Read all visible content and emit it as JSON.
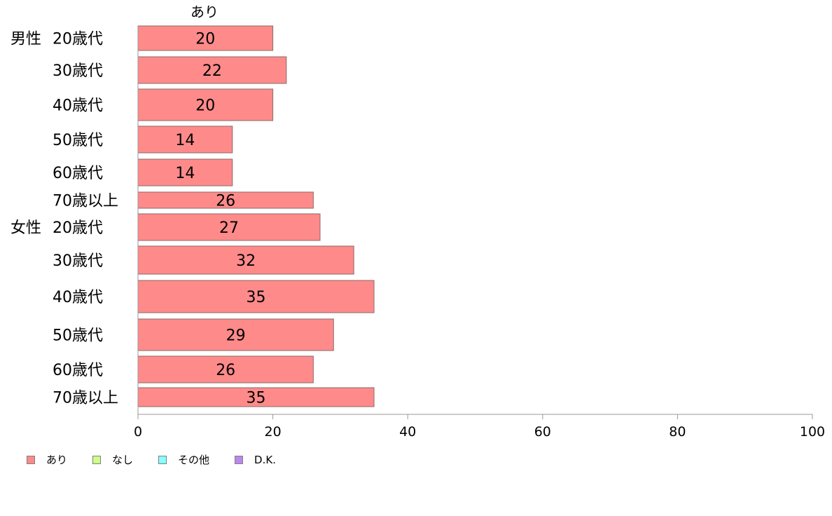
{
  "chart_data": {
    "type": "bar",
    "orientation": "horizontal",
    "column_header": "あり",
    "groups": [
      {
        "label": "男性",
        "categories": [
          "20歳代",
          "30歳代",
          "40歳代",
          "50歳代",
          "60歳代",
          "70歳以上"
        ]
      },
      {
        "label": "女性",
        "categories": [
          "20歳代",
          "30歳代",
          "40歳代",
          "50歳代",
          "60歳代",
          "70歳以上"
        ]
      }
    ],
    "series": [
      {
        "name": "あり",
        "color": "#ff8a8a",
        "values": [
          20,
          22,
          20,
          14,
          14,
          26,
          27,
          32,
          35,
          29,
          26,
          35
        ]
      }
    ],
    "xlim": [
      0,
      100
    ],
    "xticks": [
      "0",
      "20",
      "40",
      "60",
      "80",
      "100"
    ],
    "grid": false,
    "legend_position": "bottom-left",
    "legend": [
      {
        "label": "あり",
        "color": "#ff8a8a"
      },
      {
        "label": "なし",
        "color": "#ccff88"
      },
      {
        "label": "その他",
        "color": "#88ffff"
      },
      {
        "label": "D.K.",
        "color": "#bb88ee"
      }
    ]
  }
}
